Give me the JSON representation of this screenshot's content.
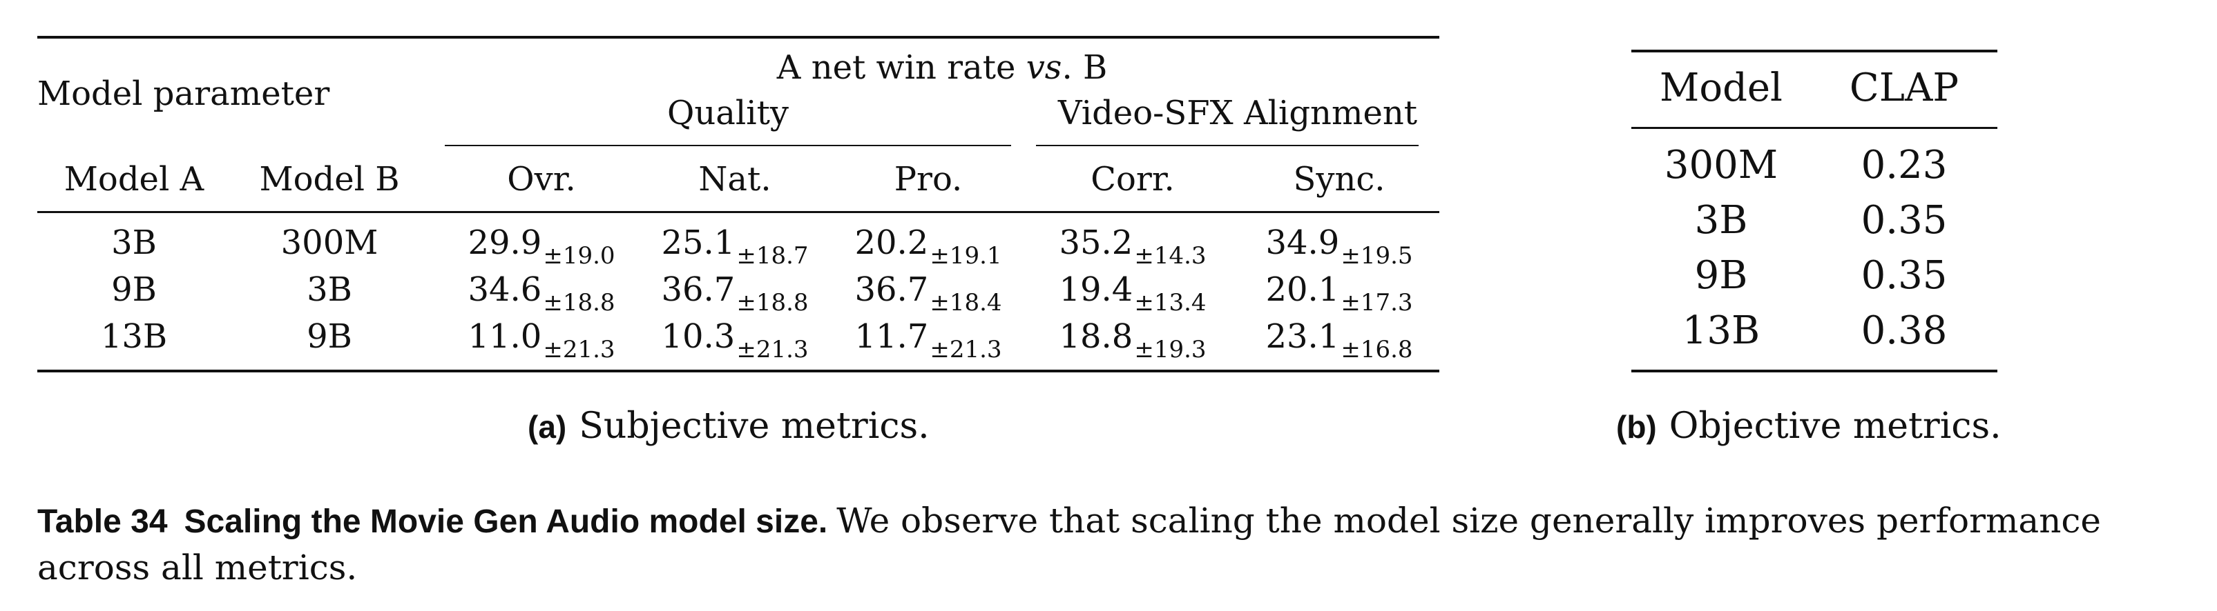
{
  "table_a": {
    "group_model_parameter": "Model parameter",
    "group_net_win": "A net win rate",
    "group_net_win_vs": "vs",
    "group_net_win_suffix": ". B",
    "group_quality": "Quality",
    "group_alignment": "Video-SFX Alignment",
    "columns": [
      "Model A",
      "Model B",
      "Ovr.",
      "Nat.",
      "Pro.",
      "Corr.",
      "Sync."
    ],
    "rows": [
      {
        "model_a": "3B",
        "model_b": "300M",
        "cells": [
          {
            "v": "29.9",
            "pm": "±19.0"
          },
          {
            "v": "25.1",
            "pm": "±18.7"
          },
          {
            "v": "20.2",
            "pm": "±19.1"
          },
          {
            "v": "35.2",
            "pm": "±14.3"
          },
          {
            "v": "34.9",
            "pm": "±19.5"
          }
        ]
      },
      {
        "model_a": "9B",
        "model_b": "3B",
        "cells": [
          {
            "v": "34.6",
            "pm": "±18.8"
          },
          {
            "v": "36.7",
            "pm": "±18.8"
          },
          {
            "v": "36.7",
            "pm": "±18.4"
          },
          {
            "v": "19.4",
            "pm": "±13.4"
          },
          {
            "v": "20.1",
            "pm": "±17.3"
          }
        ]
      },
      {
        "model_a": "13B",
        "model_b": "9B",
        "cells": [
          {
            "v": "11.0",
            "pm": "±21.3"
          },
          {
            "v": "10.3",
            "pm": "±21.3"
          },
          {
            "v": "11.7",
            "pm": "±21.3"
          },
          {
            "v": "18.8",
            "pm": "±19.3"
          },
          {
            "v": "23.1",
            "pm": "±16.8"
          }
        ]
      }
    ],
    "subcaption_tag": "(a)",
    "subcaption_text": "Subjective metrics."
  },
  "table_b": {
    "columns": [
      "Model",
      "CLAP"
    ],
    "rows": [
      {
        "model": "300M",
        "clap": "0.23"
      },
      {
        "model": "3B",
        "clap": "0.35"
      },
      {
        "model": "9B",
        "clap": "0.35"
      },
      {
        "model": "13B",
        "clap": "0.38"
      }
    ],
    "subcaption_tag": "(b)",
    "subcaption_text": "Objective metrics."
  },
  "caption": {
    "label": "Table 34",
    "title": "Scaling the Movie Gen Audio model size.",
    "text": "We observe that scaling the model size generally improves performance across all metrics."
  }
}
